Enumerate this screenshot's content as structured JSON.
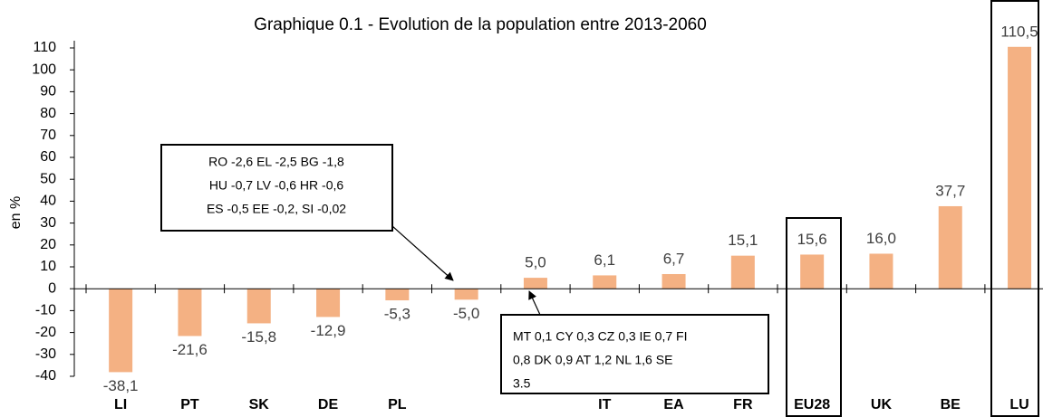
{
  "chart_data": {
    "type": "bar",
    "title": "Graphique 0.1 - Evolution de la population entre 2013-2060",
    "y_label": "en %",
    "categories": [
      "LI",
      "PT",
      "SK",
      "DE",
      "PL",
      null,
      null,
      "IT",
      "EA",
      "FR",
      "EU28",
      "UK",
      "BE",
      "LU"
    ],
    "values": [
      -38.1,
      -21.6,
      -15.8,
      -12.9,
      -5.3,
      -5.0,
      5.0,
      6.1,
      6.7,
      15.1,
      15.6,
      16.0,
      37.7,
      110.5
    ],
    "value_labels": [
      "-38,1",
      "-21,6",
      "-15,8",
      "-12,9",
      "-5,3",
      "-5,0",
      "5,0",
      "6,1",
      "6,7",
      "15,1",
      "15,6",
      "16,0",
      "37,7",
      "110,5"
    ],
    "color": "#f4b183",
    "ylim": [
      -40,
      110
    ],
    "yticks": [
      -40,
      -30,
      -20,
      -10,
      0,
      10,
      20,
      30,
      40,
      50,
      60,
      70,
      80,
      90,
      100,
      110
    ],
    "grid": false,
    "annotations": [
      {
        "lines": [
          "RO -2,6 EL -2,5 BG -1,8",
          "HU -0,7 LV -0,6 HR -0,6",
          "ES -0,5 EE -0,2, SI -0,02"
        ]
      },
      {
        "lines": [
          "MT 0,1 CY 0,3 CZ 0,3 IE 0,7 FI",
          "0,8 DK 0,9 AT 1,2 NL 1,6 SE",
          "3.5"
        ]
      }
    ]
  }
}
